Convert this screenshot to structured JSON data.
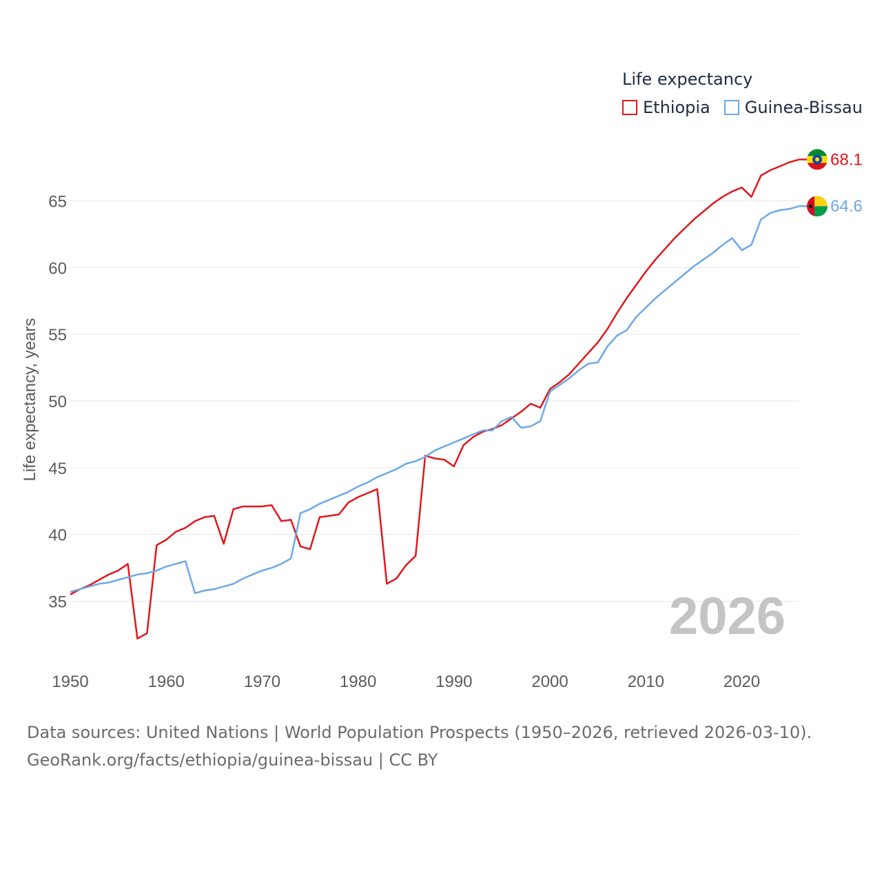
{
  "chart_data": {
    "type": "line",
    "title": "",
    "xlabel": "",
    "ylabel": "Life expectancy, years",
    "legend_title": "Life expectancy",
    "legend_position": "top-right",
    "year_label": "2026",
    "xlim": [
      1950,
      2026
    ],
    "ylim": [
      31,
      69
    ],
    "x_ticks": [
      1950,
      1960,
      1970,
      1980,
      1990,
      2000,
      2010,
      2020
    ],
    "y_ticks": [
      35,
      40,
      45,
      50,
      55,
      60,
      65
    ],
    "grid": true,
    "x": [
      1950,
      1951,
      1952,
      1953,
      1954,
      1955,
      1956,
      1957,
      1958,
      1959,
      1960,
      1961,
      1962,
      1963,
      1964,
      1965,
      1966,
      1967,
      1968,
      1969,
      1970,
      1971,
      1972,
      1973,
      1974,
      1975,
      1976,
      1977,
      1978,
      1979,
      1980,
      1981,
      1982,
      1983,
      1984,
      1985,
      1986,
      1987,
      1988,
      1989,
      1990,
      1991,
      1992,
      1993,
      1994,
      1995,
      1996,
      1997,
      1998,
      1999,
      2000,
      2001,
      2002,
      2003,
      2004,
      2005,
      2006,
      2007,
      2008,
      2009,
      2010,
      2011,
      2012,
      2013,
      2014,
      2015,
      2016,
      2017,
      2018,
      2019,
      2020,
      2021,
      2022,
      2023,
      2024,
      2025,
      2026
    ],
    "series": [
      {
        "name": "Ethiopia",
        "color": "#e3151a",
        "end_label": "68.1",
        "values": [
          35.5,
          35.9,
          36.2,
          36.6,
          37.0,
          37.3,
          37.8,
          32.2,
          32.6,
          39.2,
          39.6,
          40.2,
          40.5,
          41.0,
          41.3,
          41.4,
          39.3,
          41.9,
          42.1,
          42.1,
          42.1,
          42.2,
          41.0,
          41.1,
          39.1,
          38.9,
          41.3,
          41.4,
          41.5,
          42.4,
          42.8,
          43.1,
          43.4,
          36.3,
          36.7,
          37.7,
          38.4,
          45.9,
          45.7,
          45.6,
          45.1,
          46.7,
          47.3,
          47.7,
          47.9,
          48.2,
          48.7,
          49.2,
          49.8,
          49.5,
          50.9,
          51.4,
          52.0,
          52.8,
          53.6,
          54.4,
          55.4,
          56.6,
          57.7,
          58.7,
          59.7,
          60.6,
          61.4,
          62.2,
          62.9,
          63.6,
          64.2,
          64.8,
          65.3,
          65.7,
          66.0,
          65.3,
          66.9,
          67.3,
          67.6,
          67.9,
          68.1
        ]
      },
      {
        "name": "Guinea-Bissau",
        "color": "#6aa8e8",
        "end_label": "64.6",
        "values": [
          35.7,
          35.9,
          36.1,
          36.3,
          36.4,
          36.6,
          36.8,
          37.0,
          37.1,
          37.3,
          37.6,
          37.8,
          38.0,
          35.6,
          35.8,
          35.9,
          36.1,
          36.3,
          36.7,
          37.0,
          37.3,
          37.5,
          37.8,
          38.2,
          41.6,
          41.9,
          42.3,
          42.6,
          42.9,
          43.2,
          43.6,
          43.9,
          44.3,
          44.6,
          44.9,
          45.3,
          45.5,
          45.8,
          46.3,
          46.6,
          46.9,
          47.2,
          47.5,
          47.8,
          47.8,
          48.5,
          48.8,
          48.0,
          48.1,
          48.5,
          50.7,
          51.2,
          51.7,
          52.3,
          52.8,
          52.9,
          54.1,
          54.9,
          55.3,
          56.3,
          57.0,
          57.7,
          58.3,
          58.9,
          59.5,
          60.1,
          60.6,
          61.1,
          61.7,
          62.2,
          61.3,
          61.7,
          63.6,
          64.1,
          64.3,
          64.4,
          64.6
        ]
      }
    ]
  },
  "footer": {
    "line1": "Data sources: United Nations | World Population Prospects (1950–2026, retrieved 2026-03-10).",
    "line2": "GeoRank.org/facts/ethiopia/guinea-bissau | CC BY"
  },
  "flags": [
    {
      "country": "Ethiopia",
      "icon": "ethiopia-flag-icon",
      "colors": [
        "#078930",
        "#fcdd09",
        "#da121a",
        "#0f47af"
      ]
    },
    {
      "country": "Guinea-Bissau",
      "icon": "guinea-bissau-flag-icon",
      "colors": [
        "#ce1126",
        "#fcd116",
        "#009e49",
        "#000000"
      ]
    }
  ]
}
